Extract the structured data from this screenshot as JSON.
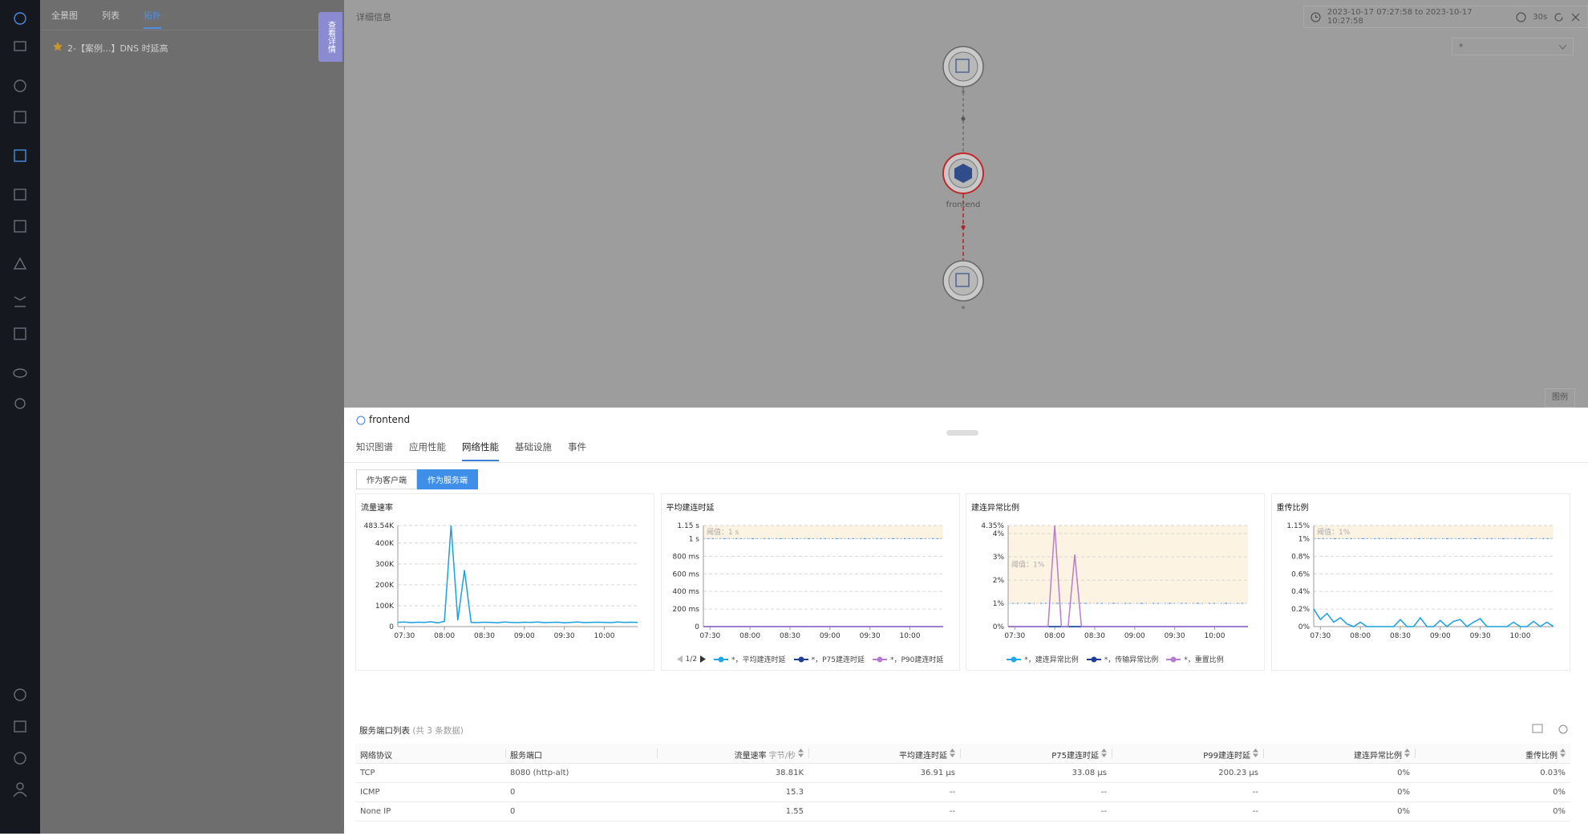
{
  "nav": {
    "tabs": [
      "全景图",
      "列表",
      "拓扑"
    ],
    "active": 2,
    "breadcrumb": "2-【案例...】DNS 时延高"
  },
  "side_tab": "查看详情",
  "detail": {
    "title": "详细信息",
    "time_range": "2023-10-17 07:27:58 to 2023-10-17 10:27:58",
    "interval": "30s",
    "filter": "*",
    "legend_button": "图例"
  },
  "graph": {
    "nodes": [
      {
        "label": "*"
      },
      {
        "label": "frontend"
      },
      {
        "label": "*"
      }
    ]
  },
  "panel": {
    "title": "frontend",
    "tabs": [
      "知识图谱",
      "应用性能",
      "网络性能",
      "基础设施",
      "事件"
    ],
    "active_tab": 2,
    "role_buttons": [
      "作为客户端",
      "作为服务端"
    ],
    "active_role": 1
  },
  "chart_data": [
    {
      "type": "line",
      "title": "流量速率",
      "x": [
        "07:25",
        "07:30",
        "07:35",
        "07:40",
        "07:45",
        "07:50",
        "07:55",
        "08:00",
        "08:05",
        "08:10",
        "08:15",
        "08:20",
        "08:25",
        "08:30",
        "08:35",
        "08:40",
        "08:45",
        "08:50",
        "08:55",
        "09:00",
        "09:05",
        "09:10",
        "09:15",
        "09:20",
        "09:25",
        "09:30",
        "09:35",
        "09:40",
        "09:45",
        "09:50",
        "09:55",
        "10:00",
        "10:05",
        "10:10",
        "10:15",
        "10:20",
        "10:25"
      ],
      "values": [
        20000,
        22000,
        19000,
        21000,
        20000,
        23000,
        18000,
        25000,
        483540,
        30000,
        270000,
        20000,
        19000,
        21000,
        20000,
        18000,
        22000,
        20000,
        19000,
        21000,
        20000,
        22000,
        19000,
        20000,
        21000,
        18000,
        20000,
        22000,
        19000,
        20000,
        21000,
        20000,
        19000,
        22000,
        20000,
        21000,
        20000
      ],
      "color": "#1a9fe0",
      "ylim": [
        0,
        483540
      ],
      "yticks": [
        0,
        {
          "value": 100000,
          "label": "100K"
        },
        {
          "value": 200000,
          "label": "200K"
        },
        {
          "value": 300000,
          "label": "300K"
        },
        {
          "value": 400000,
          "label": "400K"
        },
        {
          "value": 483540,
          "label": "483.54K"
        }
      ],
      "xticks": [
        "07:30",
        "08:00",
        "08:30",
        "09:00",
        "09:30",
        "10:00"
      ],
      "grid": true
    },
    {
      "type": "line",
      "title": "平均建连时延",
      "x": [
        "07:25",
        "07:30",
        "07:35",
        "07:40",
        "07:45",
        "07:50",
        "07:55",
        "08:00",
        "08:05",
        "08:10",
        "08:15",
        "08:20",
        "08:25",
        "08:30",
        "08:35",
        "08:40",
        "08:45",
        "08:50",
        "08:55",
        "09:00",
        "09:05",
        "09:10",
        "09:15",
        "09:20",
        "09:25",
        "09:30",
        "09:35",
        "09:40",
        "09:45",
        "09:50",
        "09:55",
        "10:00",
        "10:05",
        "10:10",
        "10:15",
        "10:20",
        "10:25"
      ],
      "series": [
        {
          "name": "*，平均建连时延",
          "color": "#22a7e6",
          "values": [
            0.04,
            0.04,
            0.04,
            0.04,
            0.04,
            0.04,
            0.04,
            0.04,
            0.05,
            0.04,
            0.04,
            0.04,
            0.04,
            0.04,
            0.04,
            0.04,
            0.04,
            0.04,
            0.04,
            0.04,
            0.04,
            0.04,
            0.04,
            0.04,
            0.04,
            0.04,
            0.04,
            0.04,
            0.04,
            0.04,
            0.04,
            0.04,
            0.04,
            0.04,
            0.04,
            0.04,
            0.04
          ]
        },
        {
          "name": "*，P75建连时延",
          "color": "#1f3d99",
          "values": [
            0.03,
            0.03,
            0.03,
            0.03,
            0.03,
            0.03,
            0.03,
            0.03,
            0.04,
            0.03,
            0.03,
            0.03,
            0.03,
            0.03,
            0.03,
            0.03,
            0.03,
            0.03,
            0.03,
            0.03,
            0.03,
            0.03,
            0.03,
            0.03,
            0.03,
            0.03,
            0.03,
            0.03,
            0.03,
            0.03,
            0.03,
            0.03,
            0.03,
            0.03,
            0.03,
            0.03,
            0.03
          ]
        },
        {
          "name": "*，P90建连时延",
          "color": "#b77ccf",
          "values": [
            0.2,
            0.2,
            0.2,
            0.2,
            0.2,
            0.2,
            0.2,
            0.2,
            0.3,
            0.2,
            0.2,
            0.2,
            0.2,
            0.2,
            0.2,
            0.2,
            0.2,
            0.2,
            0.2,
            0.2,
            0.2,
            0.2,
            0.2,
            0.2,
            0.2,
            0.2,
            0.2,
            0.2,
            0.2,
            0.2,
            0.2,
            0.2,
            0.2,
            0.2,
            0.2,
            0.2,
            0.2
          ]
        }
      ],
      "ylim": [
        0,
        1150
      ],
      "yticks": [
        0,
        {
          "value": 200,
          "label": "200 ms"
        },
        {
          "value": 400,
          "label": "400 ms"
        },
        {
          "value": 600,
          "label": "600 ms"
        },
        {
          "value": 800,
          "label": "800 ms"
        },
        {
          "value": 1000,
          "label": "1 s"
        },
        {
          "value": 1150,
          "label": "1.15 s"
        }
      ],
      "xticks": [
        "07:30",
        "08:00",
        "08:30",
        "09:00",
        "09:30",
        "10:00"
      ],
      "grid": true,
      "threshold": {
        "value": 1000,
        "label": "阈值：1 s"
      },
      "legend_page": "1/2"
    },
    {
      "type": "line",
      "title": "建连异常比例",
      "x": [
        "07:25",
        "07:30",
        "07:35",
        "07:40",
        "07:45",
        "07:50",
        "07:55",
        "08:00",
        "08:05",
        "08:10",
        "08:15",
        "08:20",
        "08:25",
        "08:30",
        "08:35",
        "08:40",
        "08:45",
        "08:50",
        "08:55",
        "09:00",
        "09:05",
        "09:10",
        "09:15",
        "09:20",
        "09:25",
        "09:30",
        "09:35",
        "09:40",
        "09:45",
        "09:50",
        "09:55",
        "10:00",
        "10:05",
        "10:10",
        "10:15",
        "10:20",
        "10:25"
      ],
      "series": [
        {
          "name": "*，建连异常比例",
          "color": "#22a7e6",
          "values": [
            0,
            0,
            0,
            0,
            0,
            0,
            0,
            0,
            0,
            0,
            0,
            0,
            0,
            0,
            0,
            0,
            0,
            0,
            0,
            0,
            0,
            0,
            0,
            0,
            0,
            0,
            0,
            0,
            0,
            0,
            0,
            0,
            0,
            0,
            0,
            0,
            0
          ]
        },
        {
          "name": "*，传输异常比例",
          "color": "#1f3d99",
          "values": [
            0,
            0,
            0,
            0,
            0,
            0,
            0,
            0,
            0,
            0,
            0,
            0,
            0,
            0,
            0,
            0,
            0,
            0,
            0,
            0,
            0,
            0,
            0,
            0,
            0,
            0,
            0,
            0,
            0,
            0,
            0,
            0,
            0,
            0,
            0,
            0,
            0
          ]
        },
        {
          "name": "*，重置比例",
          "color": "#b77ccf",
          "values": [
            0,
            0,
            0,
            0,
            0,
            0,
            0,
            4.35,
            0,
            0,
            3.1,
            0,
            0,
            0,
            0,
            0,
            0,
            0,
            0,
            0,
            0,
            0,
            0,
            0,
            0,
            0,
            0,
            0,
            0,
            0,
            0,
            0,
            0,
            0,
            0,
            0,
            0
          ]
        }
      ],
      "ylim": [
        0,
        4.35
      ],
      "yticks": [
        {
          "value": 0,
          "label": "0%"
        },
        {
          "value": 1,
          "label": "1%"
        },
        {
          "value": 2,
          "label": "2%"
        },
        {
          "value": 3,
          "label": "3%"
        },
        {
          "value": 4,
          "label": "4%"
        },
        {
          "value": 4.35,
          "label": "4.35%"
        }
      ],
      "xticks": [
        "07:30",
        "08:00",
        "08:30",
        "09:00",
        "09:30",
        "10:00"
      ],
      "grid": true,
      "threshold": {
        "value": 1,
        "label": "阈值：1%"
      }
    },
    {
      "type": "line",
      "title": "重传比例",
      "x": [
        "07:25",
        "07:30",
        "07:35",
        "07:40",
        "07:45",
        "07:50",
        "07:55",
        "08:00",
        "08:05",
        "08:10",
        "08:15",
        "08:20",
        "08:25",
        "08:30",
        "08:35",
        "08:40",
        "08:45",
        "08:50",
        "08:55",
        "09:00",
        "09:05",
        "09:10",
        "09:15",
        "09:20",
        "09:25",
        "09:30",
        "09:35",
        "09:40",
        "09:45",
        "09:50",
        "09:55",
        "10:00",
        "10:05",
        "10:10",
        "10:15",
        "10:20",
        "10:25"
      ],
      "values": [
        0.2,
        0.08,
        0.15,
        0.05,
        0.1,
        0.03,
        0,
        0.05,
        0,
        0,
        0,
        0,
        0,
        0.08,
        0,
        0,
        0.1,
        0,
        0,
        0.07,
        0,
        0.06,
        0.08,
        0,
        0.05,
        0.09,
        0,
        0,
        0,
        0,
        0.05,
        0,
        0,
        0.06,
        0,
        0.05,
        0
      ],
      "color": "#1a9fe0",
      "ylim": [
        0,
        1.15
      ],
      "yticks": [
        {
          "value": 0,
          "label": "0%"
        },
        {
          "value": 0.2,
          "label": "0.2%"
        },
        {
          "value": 0.4,
          "label": "0.4%"
        },
        {
          "value": 0.6,
          "label": "0.6%"
        },
        {
          "value": 0.8,
          "label": "0.8%"
        },
        {
          "value": 1,
          "label": "1%"
        },
        {
          "value": 1.15,
          "label": "1.15%"
        }
      ],
      "xticks": [
        "07:30",
        "08:00",
        "08:30",
        "09:00",
        "09:30",
        "10:00"
      ],
      "grid": true,
      "threshold": {
        "value": 1,
        "label": "阈值：1%"
      }
    }
  ],
  "table": {
    "title": "服务端口列表",
    "count": "(共 3 条数据)",
    "columns": [
      "网络协议",
      "服务端口",
      "流量速率",
      "平均建连时延",
      "P75建连时延",
      "P99建连时延",
      "建连异常比例",
      "重传比例"
    ],
    "rate_unit": "字节/秒",
    "rows": [
      [
        "TCP",
        "8080 (http-alt)",
        "38.81K",
        "36.91 μs",
        "33.08 μs",
        "200.23 μs",
        "0%",
        "0.03%"
      ],
      [
        "ICMP",
        "0",
        "15.3",
        "--",
        "--",
        "--",
        "0%",
        "0%"
      ],
      [
        "None IP",
        "0",
        "1.55",
        "--",
        "--",
        "--",
        "0%",
        "0%"
      ]
    ]
  }
}
